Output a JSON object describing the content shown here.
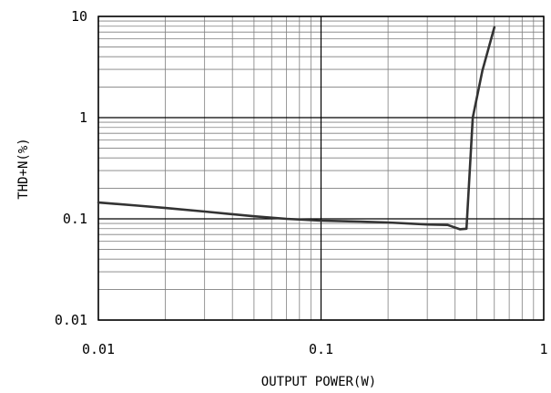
{
  "chart_data": {
    "type": "line",
    "title": "",
    "xlabel": "OUTPUT POWER(W)",
    "ylabel": "THD+N(%)",
    "x_scale": "log",
    "y_scale": "log",
    "xlim": [
      0.01,
      1
    ],
    "ylim": [
      0.01,
      10
    ],
    "x_ticks": [
      {
        "value": 0.01,
        "label": "0.01"
      },
      {
        "value": 0.1,
        "label": "0.1"
      },
      {
        "value": 1,
        "label": "1"
      }
    ],
    "y_ticks": [
      {
        "value": 0.01,
        "label": "0.01"
      },
      {
        "value": 0.1,
        "label": "0.1"
      },
      {
        "value": 1,
        "label": "1"
      },
      {
        "value": 10,
        "label": "10"
      }
    ],
    "grid": true,
    "colors": {
      "line": "#333333",
      "grid": "#7f7f7f",
      "axis": "#000000"
    },
    "series": [
      {
        "x": [
          0.01,
          0.015,
          0.02,
          0.03,
          0.05,
          0.07,
          0.1,
          0.15,
          0.2,
          0.3,
          0.37,
          0.42,
          0.45,
          0.48,
          0.53,
          0.6
        ],
        "y": [
          0.145,
          0.135,
          0.128,
          0.118,
          0.106,
          0.1,
          0.096,
          0.094,
          0.092,
          0.088,
          0.087,
          0.079,
          0.08,
          1.0,
          2.9,
          7.8
        ]
      }
    ]
  }
}
